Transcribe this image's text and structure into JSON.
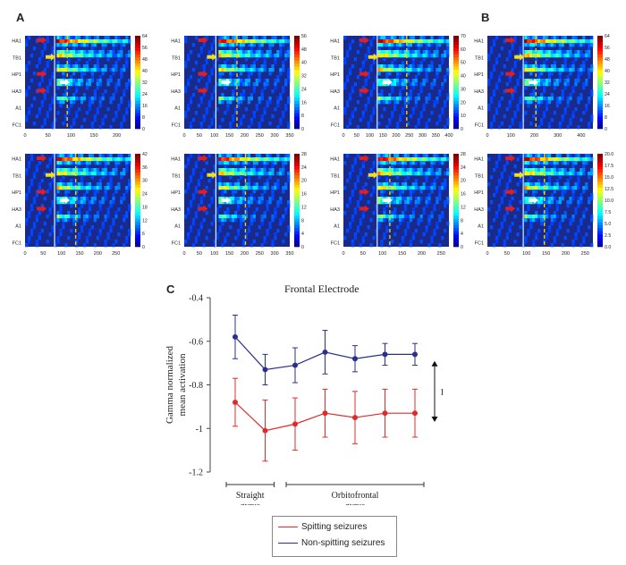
{
  "panel_labels": {
    "a": "A",
    "b": "B",
    "c": "C"
  },
  "heatmap": {
    "rows": [
      "HA1",
      "TB1",
      "HP1",
      "HA3",
      "A1",
      "FC1"
    ],
    "colors": {
      "red_arrow": "#e02020",
      "yellow_arrow": "#f0e020",
      "white_arrow": "#ffffff",
      "dash": "#f0d000"
    },
    "panels": [
      {
        "id": "a1",
        "xticks": [
          "0",
          "50",
          "100",
          "150",
          "200"
        ],
        "xmax": 230,
        "cb": [
          "0",
          "8",
          "16",
          "24",
          "32",
          "40",
          "48",
          "56",
          "64"
        ]
      },
      {
        "id": "a2",
        "xticks": [
          "0",
          "50",
          "100",
          "150",
          "200",
          "250",
          "300",
          "350"
        ],
        "xmax": 350,
        "cb": [
          "0",
          "8",
          "16",
          "24",
          "32",
          "40",
          "48",
          "56"
        ]
      },
      {
        "id": "a3",
        "xticks": [
          "0",
          "50",
          "100",
          "150",
          "200",
          "250",
          "300",
          "350",
          "400"
        ],
        "xmax": 400,
        "cb": [
          "0",
          "10",
          "20",
          "30",
          "40",
          "50",
          "60",
          "70"
        ]
      },
      {
        "id": "b1",
        "xticks": [
          "0",
          "100",
          "200",
          "300",
          "400"
        ],
        "xmax": 450,
        "cb": [
          "0",
          "8",
          "16",
          "24",
          "32",
          "40",
          "48",
          "56",
          "64"
        ]
      },
      {
        "id": "a4",
        "xticks": [
          "0",
          "50",
          "100",
          "150",
          "200",
          "250"
        ],
        "xmax": 290,
        "cb": [
          "0",
          "6",
          "12",
          "18",
          "24",
          "30",
          "36",
          "42"
        ]
      },
      {
        "id": "a5",
        "xticks": [
          "0",
          "50",
          "100",
          "150",
          "200",
          "250",
          "300",
          "350"
        ],
        "xmax": 350,
        "cb": [
          "0",
          "4",
          "8",
          "12",
          "16",
          "20",
          "24",
          "28"
        ]
      },
      {
        "id": "a6",
        "xticks": [
          "0",
          "50",
          "100",
          "150",
          "200",
          "250"
        ],
        "xmax": 270,
        "cb": [
          "0",
          "4",
          "8",
          "12",
          "16",
          "20",
          "24",
          "28"
        ]
      },
      {
        "id": "b2",
        "xticks": [
          "0",
          "50",
          "100",
          "150",
          "200",
          "250"
        ],
        "xmax": 270,
        "cb": [
          "0.0",
          "2.5",
          "5.0",
          "7.5",
          "10.0",
          "12.5",
          "15.0",
          "17.5",
          "20.0"
        ]
      }
    ]
  },
  "chart_data": {
    "type": "line",
    "title": "Frontal Electrode",
    "ylabel": "Gamma normalized mean activation",
    "ylim": [
      -1.2,
      -0.4
    ],
    "yticks": [
      "-0.4",
      "-0.6",
      "-0.8",
      "-1",
      "-1.2"
    ],
    "yticks_values": [
      -0.4,
      -0.6,
      -0.8,
      -1.0,
      -1.2
    ],
    "x": [
      1,
      2,
      3,
      4,
      5,
      6,
      7
    ],
    "groups": [
      {
        "label": "Straight gyrus",
        "from": 1,
        "to": 2
      },
      {
        "label": "Orbitofrontal gyrus",
        "from": 3,
        "to": 7
      }
    ],
    "annotation": "D>1.0",
    "series": [
      {
        "name": "Spitting seizures",
        "color": "#e02a2a",
        "values": [
          -0.88,
          -1.01,
          -0.98,
          -0.93,
          -0.95,
          -0.93,
          -0.93
        ],
        "err": [
          0.11,
          0.14,
          0.12,
          0.11,
          0.12,
          0.11,
          0.11
        ]
      },
      {
        "name": "Non-spitting seizures",
        "color": "#2a2f8f",
        "values": [
          -0.58,
          -0.73,
          -0.71,
          -0.65,
          -0.68,
          -0.66,
          -0.66
        ],
        "err": [
          0.1,
          0.07,
          0.08,
          0.1,
          0.06,
          0.05,
          0.05
        ]
      }
    ]
  }
}
